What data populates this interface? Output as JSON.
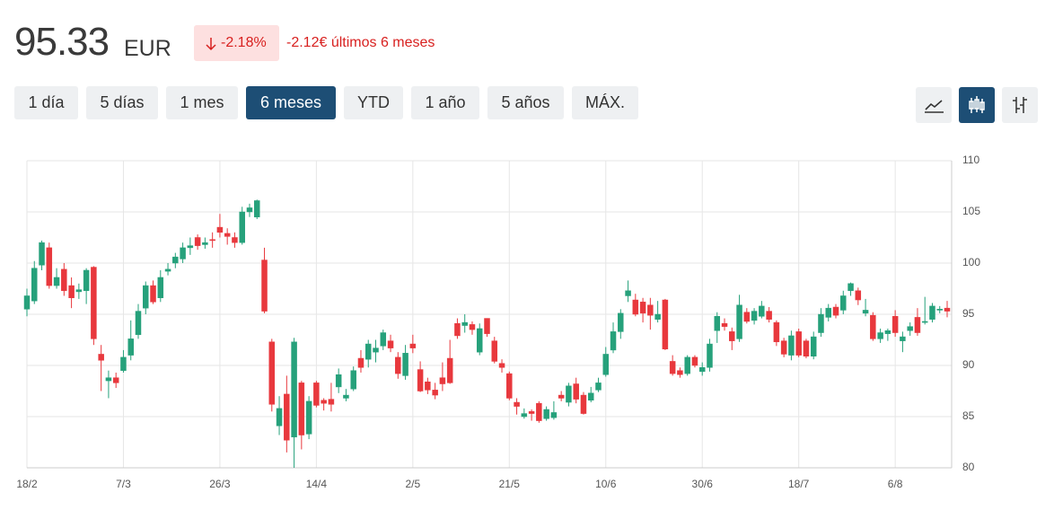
{
  "header": {
    "price": "95.33",
    "currency": "EUR",
    "change_pct": "-2.18%",
    "change_text": "-2.12€ últimos 6 meses"
  },
  "buttons": [
    {
      "label": "1 día"
    },
    {
      "label": "5 días"
    },
    {
      "label": "1 mes"
    },
    {
      "label": "6 meses",
      "active": true
    },
    {
      "label": "YTD"
    },
    {
      "label": "1 año"
    },
    {
      "label": "5 años"
    },
    {
      "label": "MÁX."
    }
  ],
  "chart_data": {
    "type": "candlestick",
    "up_color": "#26a17b",
    "down_color": "#e8383d",
    "grid": true,
    "y_axis_side": "right",
    "ylim": [
      80,
      110
    ],
    "yticks": [
      80,
      85,
      90,
      95,
      100,
      105,
      110
    ],
    "categories": [
      "18/2",
      null,
      null,
      null,
      null,
      null,
      null,
      null,
      null,
      null,
      null,
      null,
      null,
      "7/3",
      null,
      null,
      null,
      null,
      null,
      null,
      null,
      null,
      null,
      null,
      null,
      null,
      "26/3",
      null,
      null,
      null,
      null,
      null,
      null,
      null,
      null,
      null,
      null,
      null,
      null,
      "14/4",
      null,
      null,
      null,
      null,
      null,
      null,
      null,
      null,
      null,
      null,
      null,
      null,
      "2/5",
      null,
      null,
      null,
      null,
      null,
      null,
      null,
      null,
      null,
      null,
      null,
      null,
      "21/5",
      null,
      null,
      null,
      null,
      null,
      null,
      null,
      null,
      null,
      null,
      null,
      null,
      "10/6",
      null,
      null,
      null,
      null,
      null,
      null,
      null,
      null,
      null,
      null,
      null,
      null,
      "30/6",
      null,
      null,
      null,
      null,
      null,
      null,
      null,
      null,
      null,
      null,
      null,
      null,
      "18/7",
      null,
      null,
      null,
      null,
      null,
      null,
      null,
      null,
      null,
      null,
      null,
      null,
      "6/8",
      null,
      null,
      null,
      null,
      null,
      null,
      null
    ],
    "open": [
      95.5,
      96.3,
      99.8,
      101.5,
      97.8,
      99.4,
      97.8,
      97.2,
      97.3,
      99.6,
      91.1,
      88.5,
      88.8,
      89.5,
      91,
      93,
      95.6,
      97.8,
      96.6,
      99.2,
      100,
      100.4,
      101.5,
      102.5,
      101.8,
      102.3,
      103.5,
      102.9,
      102.5,
      102,
      105,
      104.5,
      100.3,
      92.3,
      84.1,
      87.2,
      83,
      88.3,
      83.3,
      88.3,
      86.6,
      86.7,
      87.9,
      86.8,
      87.7,
      90.7,
      90.6,
      91.3,
      91.9,
      92.4,
      90.8,
      89,
      92.1,
      89.6,
      88.4,
      87.6,
      88.8,
      90.7,
      94.1,
      93.9,
      94,
      91.3,
      94.6,
      92.4,
      90.2,
      89.2,
      86.4,
      85,
      85.5,
      86.3,
      84.8,
      84.9,
      87.1,
      86.4,
      88.2,
      87.1,
      86.6,
      87.6,
      89.1,
      91.5,
      93.3,
      96.8,
      96.4,
      96.2,
      95.9,
      94.5,
      96.4,
      90.4,
      89.5,
      89.2,
      90.8,
      89.4,
      89.8,
      93.4,
      94.1,
      93.3,
      92.6,
      95.2,
      94.4,
      94.8,
      95.3,
      94.2,
      92.4,
      91,
      93.3,
      92.4,
      90.9,
      93.2,
      94.7,
      95.7,
      95.4,
      97.3,
      97.3,
      95.1,
      94.9,
      92.6,
      93.1,
      94.8,
      92.4,
      93.4,
      94.7,
      94.2,
      94.5,
      95.4,
      95.6
    ],
    "high": [
      97.5,
      100.2,
      102.2,
      102,
      99.5,
      100,
      98.6,
      98,
      99.5,
      99.7,
      92,
      89.5,
      89.3,
      91.5,
      94.4,
      96,
      98.2,
      98.3,
      99.3,
      100,
      101,
      102,
      102.5,
      102.8,
      102.5,
      103,
      104.8,
      103.4,
      103,
      105.5,
      105.8,
      106.2,
      101.5,
      92.6,
      87,
      89,
      92.7,
      88.5,
      87,
      88.5,
      86.8,
      88.3,
      89.7,
      87.7,
      89.9,
      91.5,
      92.5,
      92.5,
      93.5,
      93,
      91.3,
      92,
      93,
      90.4,
      88.8,
      88.3,
      90.3,
      92.5,
      94.6,
      95,
      94.3,
      94.1,
      94.6,
      92.8,
      90.6,
      89.4,
      86.8,
      85.8,
      85.7,
      86.5,
      86,
      86.5,
      87.5,
      88.3,
      88.8,
      87.4,
      87.9,
      88.8,
      91.8,
      94.2,
      95.5,
      98.3,
      97,
      96.6,
      96.6,
      96.3,
      96.5,
      91,
      89.8,
      91,
      91,
      90.3,
      92.6,
      95.2,
      94.6,
      93.7,
      96.9,
      95.6,
      95.6,
      96.3,
      95.7,
      94.4,
      92.7,
      93.4,
      93.6,
      92.6,
      93.3,
      95.6,
      96,
      96,
      97.3,
      98.1,
      97.6,
      96.5,
      95.2,
      93.6,
      93.6,
      95.4,
      93.3,
      94.2,
      95.6,
      96.7,
      96.1,
      95.8,
      96.3
    ],
    "low": [
      94.8,
      96,
      99.3,
      97.5,
      97.5,
      96.8,
      95.6,
      96.5,
      96,
      92,
      87.5,
      86.8,
      87.8,
      89.3,
      90.5,
      92.6,
      95,
      96,
      96.2,
      98.8,
      99.5,
      100,
      100.8,
      101.3,
      101.4,
      101.5,
      102.5,
      101.8,
      101.5,
      101.8,
      104.5,
      104.3,
      95.1,
      85.5,
      83.2,
      81.5,
      80,
      81.8,
      82.8,
      85.9,
      85.6,
      85.5,
      87.3,
      86.5,
      87.5,
      89.3,
      89.8,
      90.3,
      91.5,
      91.3,
      88.7,
      88.6,
      91.2,
      87.4,
      87.2,
      86.7,
      87.5,
      88.2,
      92.6,
      93.2,
      93,
      91,
      92.8,
      90.2,
      89.3,
      86.6,
      85.2,
      84.8,
      84.6,
      84.4,
      84.6,
      84.7,
      86.5,
      86,
      86.3,
      85.2,
      86.4,
      87.4,
      88.9,
      91.2,
      92.6,
      96.2,
      94.8,
      94.2,
      93.5,
      94.2,
      91.5,
      89,
      88.8,
      89,
      89.8,
      89,
      89.4,
      92.2,
      93.4,
      91.5,
      92.3,
      94.1,
      94,
      94.6,
      94.2,
      91.9,
      90.8,
      90.5,
      90.8,
      90.7,
      90.6,
      92.8,
      94.3,
      94.6,
      95,
      96.8,
      95.9,
      94.8,
      92.4,
      92.2,
      92.4,
      92.8,
      91.3,
      92.9,
      92.9,
      94,
      94.2,
      95.1,
      94.7
    ],
    "close": [
      96.8,
      99.5,
      102,
      97.8,
      98.6,
      97.3,
      96.6,
      97.4,
      99.3,
      92.6,
      90.5,
      88.8,
      88.3,
      90.8,
      92.6,
      95.3,
      97.8,
      96.2,
      98.6,
      99.4,
      100.6,
      101.5,
      101.7,
      101.7,
      102,
      102.2,
      103,
      102.6,
      102,
      105,
      105.4,
      106.1,
      95.3,
      86.2,
      85.8,
      82.7,
      92.3,
      83.2,
      86.5,
      86.1,
      86.3,
      86.2,
      89.1,
      87.1,
      89.5,
      89.8,
      92.1,
      91.7,
      93.2,
      91.7,
      89.2,
      91.2,
      91.7,
      87.5,
      87.6,
      87.1,
      88.2,
      88.3,
      92.9,
      94.2,
      93.5,
      93.6,
      93.1,
      90.4,
      89.8,
      86.8,
      86,
      85.3,
      85.3,
      84.6,
      85.7,
      85.4,
      86.8,
      88,
      86.7,
      85.3,
      87.3,
      88.3,
      91.1,
      93.3,
      95.1,
      97.3,
      95,
      95.1,
      94.9,
      95,
      91.6,
      89.2,
      89.1,
      90.8,
      90,
      89.8,
      92.1,
      94.8,
      93.8,
      92.4,
      95.9,
      94.3,
      95.3,
      95.8,
      94.5,
      92.3,
      91.1,
      92.9,
      91,
      90.9,
      92.8,
      95,
      95.6,
      94.9,
      96.8,
      98,
      96.4,
      95.4,
      92.6,
      93.2,
      93.4,
      93.2,
      92.8,
      93.8,
      93.2,
      94.3,
      95.8,
      95.5,
      95.3
    ]
  }
}
